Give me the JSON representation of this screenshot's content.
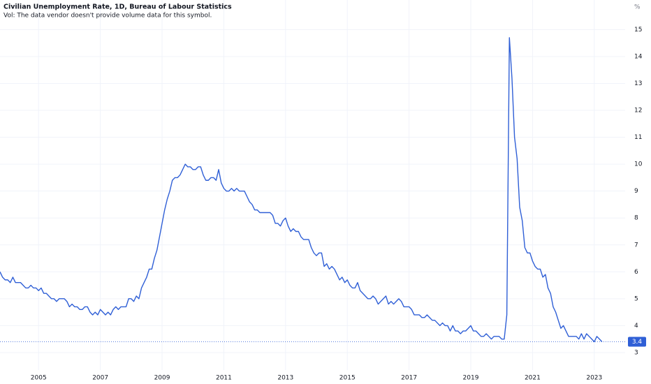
{
  "chart_data": {
    "type": "line",
    "title": "Civilian Unemployment Rate, 1D, Bureau of Labour Statistics",
    "subtitle": "Vol: The data vendor doesn't provide volume data for this symbol.",
    "y_label": "%",
    "grid": true,
    "xlim": [
      2003.75,
      2024
    ],
    "xticks": [
      2005,
      2007,
      2009,
      2011,
      2013,
      2015,
      2017,
      2019,
      2021,
      2023
    ],
    "ylim": [
      2.35,
      16.1
    ],
    "yticks": [
      3,
      4,
      5,
      6,
      7,
      8,
      9,
      10,
      11,
      12,
      13,
      14,
      15
    ],
    "x": [
      2003.75,
      2003.833,
      2003.917,
      2004,
      2004.083,
      2004.167,
      2004.25,
      2004.333,
      2004.417,
      2004.5,
      2004.583,
      2004.667,
      2004.75,
      2004.833,
      2004.917,
      2005,
      2005.083,
      2005.167,
      2005.25,
      2005.333,
      2005.417,
      2005.5,
      2005.583,
      2005.667,
      2005.75,
      2005.833,
      2005.917,
      2006,
      2006.083,
      2006.167,
      2006.25,
      2006.333,
      2006.417,
      2006.5,
      2006.583,
      2006.667,
      2006.75,
      2006.833,
      2006.917,
      2007,
      2007.083,
      2007.167,
      2007.25,
      2007.333,
      2007.417,
      2007.5,
      2007.583,
      2007.667,
      2007.75,
      2007.833,
      2007.917,
      2008,
      2008.083,
      2008.167,
      2008.25,
      2008.333,
      2008.417,
      2008.5,
      2008.583,
      2008.667,
      2008.75,
      2008.833,
      2008.917,
      2009,
      2009.083,
      2009.167,
      2009.25,
      2009.333,
      2009.417,
      2009.5,
      2009.583,
      2009.667,
      2009.75,
      2009.833,
      2009.917,
      2010,
      2010.083,
      2010.167,
      2010.25,
      2010.333,
      2010.417,
      2010.5,
      2010.583,
      2010.667,
      2010.75,
      2010.833,
      2010.917,
      2011,
      2011.083,
      2011.167,
      2011.25,
      2011.333,
      2011.417,
      2011.5,
      2011.583,
      2011.667,
      2011.75,
      2011.833,
      2011.917,
      2012,
      2012.083,
      2012.167,
      2012.25,
      2012.333,
      2012.417,
      2012.5,
      2012.583,
      2012.667,
      2012.75,
      2012.833,
      2012.917,
      2013,
      2013.083,
      2013.167,
      2013.25,
      2013.333,
      2013.417,
      2013.5,
      2013.583,
      2013.667,
      2013.75,
      2013.833,
      2013.917,
      2014,
      2014.083,
      2014.167,
      2014.25,
      2014.333,
      2014.417,
      2014.5,
      2014.583,
      2014.667,
      2014.75,
      2014.833,
      2014.917,
      2015,
      2015.083,
      2015.167,
      2015.25,
      2015.333,
      2015.417,
      2015.5,
      2015.583,
      2015.667,
      2015.75,
      2015.833,
      2015.917,
      2016,
      2016.083,
      2016.167,
      2016.25,
      2016.333,
      2016.417,
      2016.5,
      2016.583,
      2016.667,
      2016.75,
      2016.833,
      2016.917,
      2017,
      2017.083,
      2017.167,
      2017.25,
      2017.333,
      2017.417,
      2017.5,
      2017.583,
      2017.667,
      2017.75,
      2017.833,
      2017.917,
      2018,
      2018.083,
      2018.167,
      2018.25,
      2018.333,
      2018.417,
      2018.5,
      2018.583,
      2018.667,
      2018.75,
      2018.833,
      2018.917,
      2019,
      2019.083,
      2019.167,
      2019.25,
      2019.333,
      2019.417,
      2019.5,
      2019.583,
      2019.667,
      2019.75,
      2019.833,
      2019.917,
      2020,
      2020.083,
      2020.167,
      2020.25,
      2020.333,
      2020.417,
      2020.5,
      2020.583,
      2020.667,
      2020.75,
      2020.833,
      2020.917,
      2021,
      2021.083,
      2021.167,
      2021.25,
      2021.333,
      2021.417,
      2021.5,
      2021.583,
      2021.667,
      2021.75,
      2021.833,
      2021.917,
      2022,
      2022.083,
      2022.167,
      2022.25,
      2022.333,
      2022.417,
      2022.5,
      2022.583,
      2022.667,
      2022.75,
      2022.833,
      2022.917,
      2023,
      2023.083,
      2023.167,
      2023.25
    ],
    "series": [
      {
        "color": "#2f5fd6",
        "values": [
          6.0,
          5.8,
          5.7,
          5.7,
          5.6,
          5.8,
          5.6,
          5.6,
          5.6,
          5.5,
          5.4,
          5.4,
          5.5,
          5.4,
          5.4,
          5.3,
          5.4,
          5.2,
          5.2,
          5.1,
          5.0,
          5.0,
          4.9,
          5.0,
          5.0,
          5.0,
          4.9,
          4.7,
          4.8,
          4.7,
          4.7,
          4.6,
          4.6,
          4.7,
          4.7,
          4.5,
          4.4,
          4.5,
          4.4,
          4.6,
          4.5,
          4.4,
          4.5,
          4.4,
          4.6,
          4.7,
          4.6,
          4.7,
          4.7,
          4.7,
          5.0,
          5.0,
          4.9,
          5.1,
          5.0,
          5.4,
          5.6,
          5.8,
          6.1,
          6.1,
          6.5,
          6.8,
          7.3,
          7.8,
          8.3,
          8.7,
          9.0,
          9.4,
          9.5,
          9.5,
          9.6,
          9.8,
          10.0,
          9.9,
          9.9,
          9.8,
          9.8,
          9.9,
          9.9,
          9.6,
          9.4,
          9.4,
          9.5,
          9.5,
          9.4,
          9.8,
          9.3,
          9.1,
          9.0,
          9.0,
          9.1,
          9.0,
          9.1,
          9.0,
          9.0,
          9.0,
          8.8,
          8.6,
          8.5,
          8.3,
          8.3,
          8.2,
          8.2,
          8.2,
          8.2,
          8.2,
          8.1,
          7.8,
          7.8,
          7.7,
          7.9,
          8.0,
          7.7,
          7.5,
          7.6,
          7.5,
          7.5,
          7.3,
          7.2,
          7.2,
          7.2,
          6.9,
          6.7,
          6.6,
          6.7,
          6.7,
          6.2,
          6.3,
          6.1,
          6.2,
          6.1,
          5.9,
          5.7,
          5.8,
          5.6,
          5.7,
          5.5,
          5.4,
          5.4,
          5.6,
          5.3,
          5.2,
          5.1,
          5.0,
          5.0,
          5.1,
          5.0,
          4.8,
          4.9,
          5.0,
          5.1,
          4.8,
          4.9,
          4.8,
          4.9,
          5.0,
          4.9,
          4.7,
          4.7,
          4.7,
          4.6,
          4.4,
          4.4,
          4.4,
          4.3,
          4.3,
          4.4,
          4.3,
          4.2,
          4.2,
          4.1,
          4.0,
          4.1,
          4.0,
          4.0,
          3.8,
          4.0,
          3.8,
          3.8,
          3.7,
          3.8,
          3.8,
          3.9,
          4.0,
          3.8,
          3.8,
          3.7,
          3.6,
          3.6,
          3.7,
          3.6,
          3.5,
          3.6,
          3.6,
          3.6,
          3.5,
          3.5,
          4.4,
          14.7,
          13.2,
          11.0,
          10.2,
          8.4,
          7.9,
          6.9,
          6.7,
          6.7,
          6.4,
          6.2,
          6.1,
          6.1,
          5.8,
          5.9,
          5.4,
          5.2,
          4.7,
          4.5,
          4.2,
          3.9,
          4.0,
          3.8,
          3.6,
          3.6,
          3.6,
          3.6,
          3.5,
          3.7,
          3.5,
          3.7,
          3.6,
          3.5,
          3.4,
          3.6,
          3.5,
          3.4
        ]
      }
    ]
  }
}
